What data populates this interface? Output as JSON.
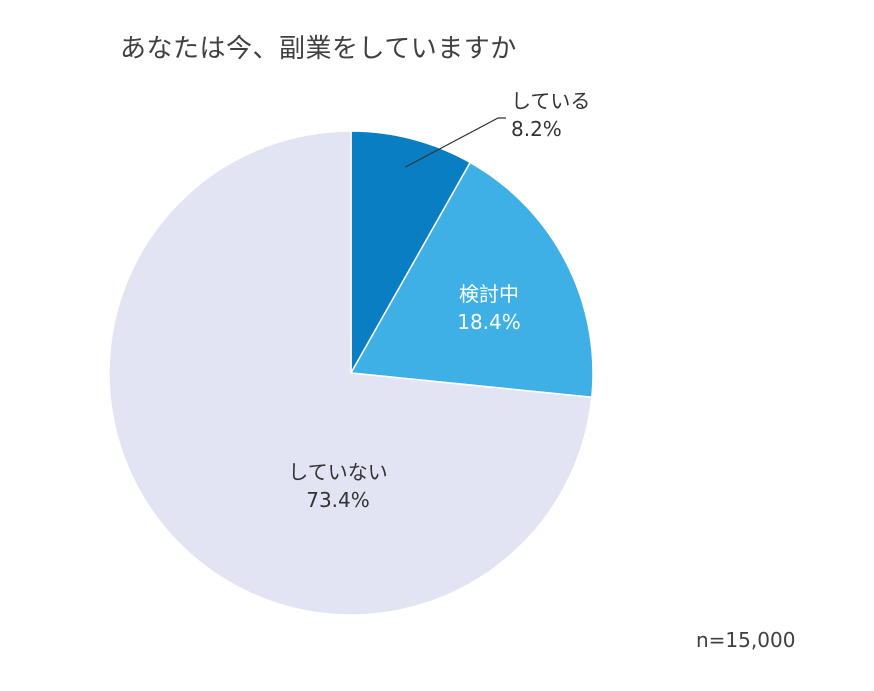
{
  "title": "あなたは今、副業をしていますか",
  "sample_note": "n=15,000",
  "chart_data": {
    "type": "pie",
    "title": "あなたは今、副業をしていますか",
    "start_angle_deg": 0,
    "direction": "clockwise",
    "slices": [
      {
        "label": "している",
        "value": 8.2,
        "display": "8.2%",
        "color": "#0a7ec2",
        "label_color": "#333333",
        "label_placement": "outside"
      },
      {
        "label": "検討中",
        "value": 18.4,
        "display": "18.4%",
        "color": "#3fb0e6",
        "label_color": "#ffffff",
        "label_placement": "inside"
      },
      {
        "label": "していない",
        "value": 73.4,
        "display": "73.4%",
        "color": "#e3e4f3",
        "label_color": "#333333",
        "label_placement": "inside"
      }
    ],
    "annotation": "n=15,000"
  }
}
